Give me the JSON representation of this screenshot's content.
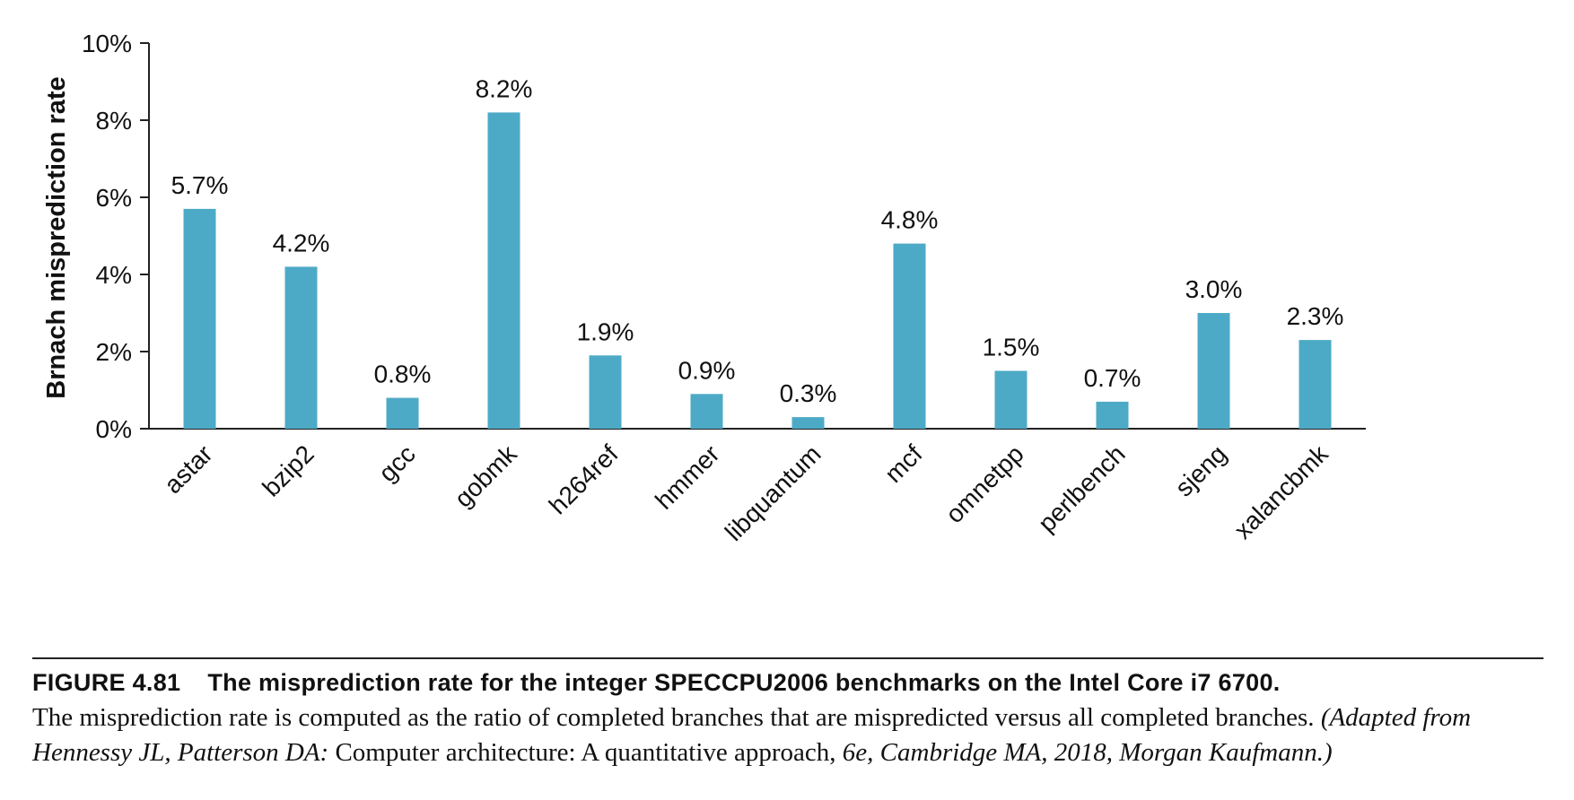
{
  "chart_data": {
    "type": "bar",
    "ylabel": "Brnach misprediction rate",
    "xlabel": "",
    "ylim": [
      0,
      10
    ],
    "yticks": [
      0,
      2,
      4,
      6,
      8,
      10
    ],
    "ytick_labels": [
      "0%",
      "2%",
      "4%",
      "6%",
      "8%",
      "10%"
    ],
    "categories": [
      "astar",
      "bzip2",
      "gcc",
      "gobmk",
      "h264ref",
      "hmmer",
      "libquantum",
      "mcf",
      "omnetpp",
      "perlbench",
      "sjeng",
      "xalancbmk"
    ],
    "values": [
      5.7,
      4.2,
      0.8,
      8.2,
      1.9,
      0.9,
      0.3,
      4.8,
      1.5,
      0.7,
      3.0,
      2.3
    ],
    "data_labels": [
      "5.7%",
      "4.2%",
      "0.8%",
      "8.2%",
      "1.9%",
      "0.9%",
      "0.3%",
      "4.8%",
      "1.5%",
      "0.7%",
      "3.0%",
      "2.3%"
    ],
    "bar_color": "#4daac6",
    "grid": false
  },
  "caption": {
    "figure_label": "FIGURE 4.81",
    "title": "The misprediction rate for the integer SPECCPU2006 benchmarks on the Intel Core i7 6700.",
    "body": "The misprediction rate is computed as the ratio of completed branches that are mispredicted versus all completed branches.",
    "source_prefix": "(Adapted from Hennessy JL, Patterson DA:",
    "source_title": "Computer architecture: A quantitative approach,",
    "source_suffix": "6e, Cambridge MA, 2018, Morgan Kaufmann.)"
  }
}
